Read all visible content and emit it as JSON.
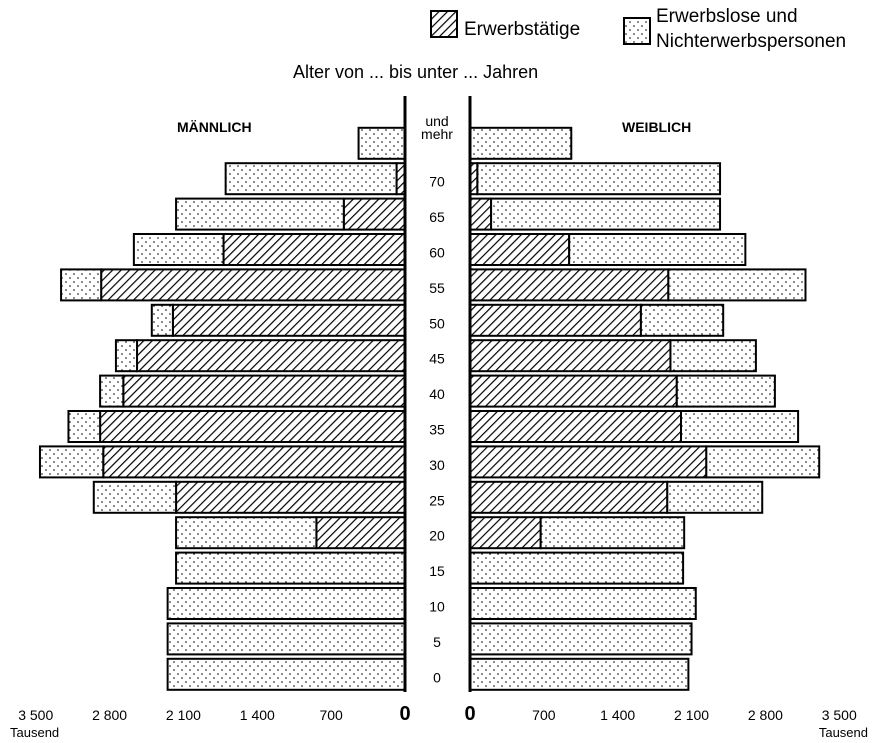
{
  "legend": {
    "employed": "Erwerbstätige",
    "nonemployed_line1": "Erwerbslose und",
    "nonemployed_line2": "Nichterwerbspersonen"
  },
  "subtitle": "Alter von ... bis unter ... Jahren",
  "male_label": "MÄNNLICH",
  "female_label": "WEIBLICH",
  "top_age_label_line1": "und",
  "top_age_label_line2": "mehr",
  "unit_left": "Tausend",
  "unit_right": "Tausend",
  "colors": {
    "ink": "#000000",
    "paper": "#ffffff"
  },
  "chart_data": {
    "type": "bar",
    "orientation": "horizontal",
    "layout": "population-pyramid",
    "categories": [
      "0",
      "5",
      "10",
      "15",
      "20",
      "25",
      "30",
      "35",
      "40",
      "45",
      "50",
      "55",
      "60",
      "65",
      "70"
    ],
    "category_prefix_for_open_group": "und mehr",
    "x_tick_values": [
      3500,
      2800,
      2100,
      1400,
      700,
      0
    ],
    "x_tick_labels": [
      "3 500",
      "2 800",
      "2 100",
      "1 400",
      "700",
      "0"
    ],
    "x_unit": "Tausend",
    "xlim": [
      0,
      3500
    ],
    "groups": [
      "0",
      "5",
      "10",
      "15",
      "20",
      "25",
      "30",
      "35",
      "40",
      "45",
      "50",
      "55",
      "60",
      "65",
      "70",
      "70 und mehr"
    ],
    "series": [
      {
        "name": "Erwerbstätige",
        "pattern": "hatched",
        "male": [
          0,
          0,
          0,
          0,
          840,
          2170,
          2860,
          2890,
          2670,
          2540,
          2200,
          2880,
          1720,
          580,
          80,
          0
        ],
        "female": [
          0,
          0,
          0,
          0,
          670,
          1870,
          2240,
          2000,
          1960,
          1900,
          1620,
          1880,
          940,
          200,
          70,
          0
        ]
      },
      {
        "name": "Erwerbslose und Nichterwerbspersonen",
        "pattern": "dotted",
        "male": [
          2250,
          2250,
          2250,
          2170,
          1330,
          780,
          600,
          300,
          220,
          200,
          200,
          380,
          850,
          1590,
          1620,
          440
        ],
        "female": [
          2070,
          2100,
          2140,
          2020,
          1360,
          900,
          1070,
          1110,
          930,
          810,
          780,
          1300,
          1670,
          2170,
          2300,
          960
        ]
      }
    ]
  }
}
